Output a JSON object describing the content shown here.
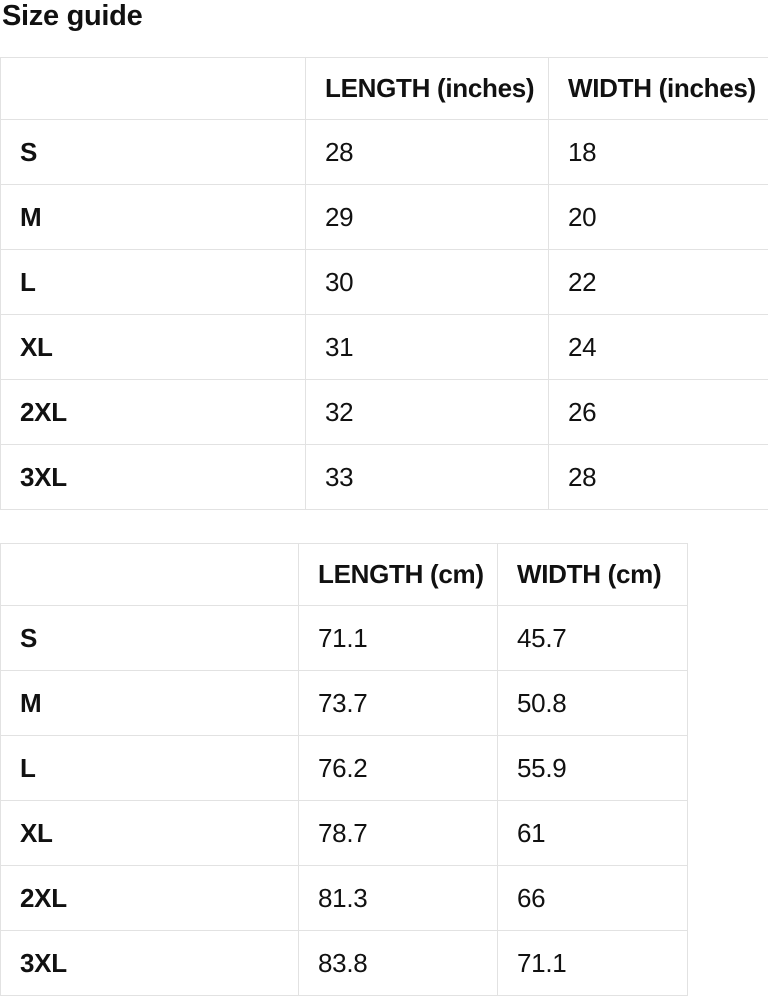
{
  "page_title": "Size guide",
  "colors": {
    "background": "#ffffff",
    "text": "#111111",
    "table_border": "#e2e2e2"
  },
  "tables": [
    {
      "id": "inches",
      "columns": [
        "",
        "LENGTH (inches)",
        "WIDTH (inches)"
      ],
      "rows": [
        {
          "size": "S",
          "length": "28",
          "width": "18"
        },
        {
          "size": "M",
          "length": "29",
          "width": "20"
        },
        {
          "size": "L",
          "length": "30",
          "width": "22"
        },
        {
          "size": "XL",
          "length": "31",
          "width": "24"
        },
        {
          "size": "2XL",
          "length": "32",
          "width": "26"
        },
        {
          "size": "3XL",
          "length": "33",
          "width": "28"
        }
      ]
    },
    {
      "id": "cm",
      "columns": [
        "",
        "LENGTH (cm)",
        "WIDTH (cm)"
      ],
      "rows": [
        {
          "size": "S",
          "length": "71.1",
          "width": "45.7"
        },
        {
          "size": "M",
          "length": "73.7",
          "width": "50.8"
        },
        {
          "size": "L",
          "length": "76.2",
          "width": "55.9"
        },
        {
          "size": "XL",
          "length": "78.7",
          "width": "61"
        },
        {
          "size": "2XL",
          "length": "81.3",
          "width": "66"
        },
        {
          "size": "3XL",
          "length": "83.8",
          "width": "71.1"
        }
      ]
    }
  ]
}
